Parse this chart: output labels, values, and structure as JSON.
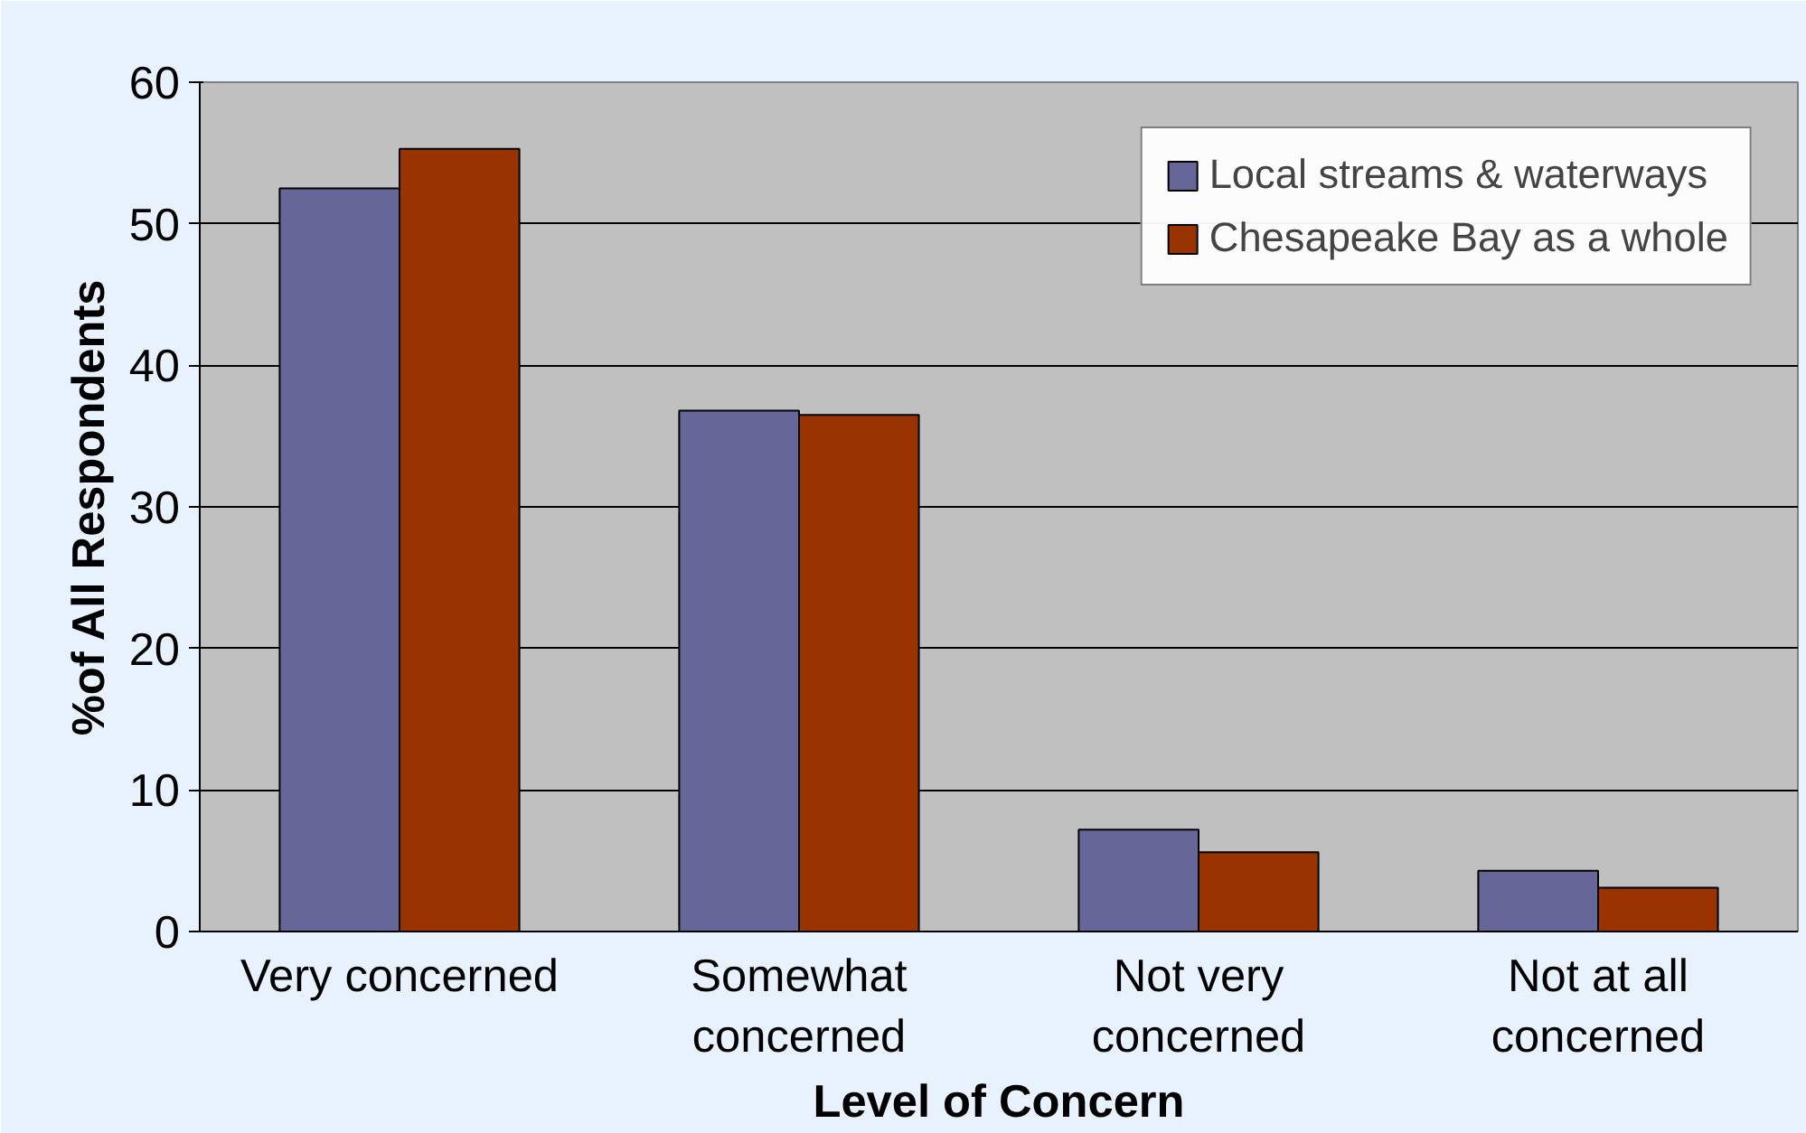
{
  "chart_data": {
    "type": "bar",
    "xlabel": "Level of Concern",
    "ylabel": "%of All Respondents",
    "categories": [
      "Very concerned",
      "Somewhat\nconcerned",
      "Not very\nconcerned",
      "Not at all\nconcerned"
    ],
    "series": [
      {
        "name": "Local streams & waterways",
        "color": "#666699",
        "values": [
          52.5,
          36.8,
          7.2,
          4.3
        ]
      },
      {
        "name": "Chesapeake Bay as a whole",
        "color": "#993300",
        "values": [
          55.3,
          36.5,
          5.6,
          3.1
        ]
      }
    ],
    "ylim": [
      0,
      60
    ],
    "yticks": [
      0,
      10,
      20,
      30,
      40,
      50,
      60
    ],
    "grid": "y",
    "legend": "top right"
  }
}
